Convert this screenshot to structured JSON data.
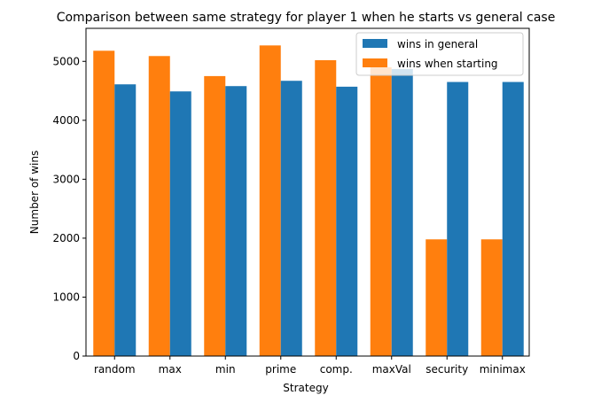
{
  "chart_data": {
    "type": "bar",
    "title": "Comparison between same strategy for player 1 when he starts vs general case",
    "xlabel": "Strategy",
    "ylabel": "Number of wins",
    "categories": [
      "random",
      "max",
      "min",
      "prime",
      "comp.",
      "maxVal",
      "security",
      "minimax"
    ],
    "ylim": [
      0,
      5560
    ],
    "yticks": [
      0,
      1000,
      2000,
      3000,
      4000,
      5000
    ],
    "grid": false,
    "legend_position": "top-right",
    "series": [
      {
        "name": "wins in general",
        "color": "#1f77b4",
        "values": [
          4610,
          4490,
          4580,
          4670,
          4570,
          4870,
          4650,
          4650
        ]
      },
      {
        "name": "wins when starting",
        "color": "#ff7f0e",
        "values": [
          5180,
          5090,
          4750,
          5270,
          5020,
          4900,
          1980,
          1980
        ]
      }
    ]
  }
}
